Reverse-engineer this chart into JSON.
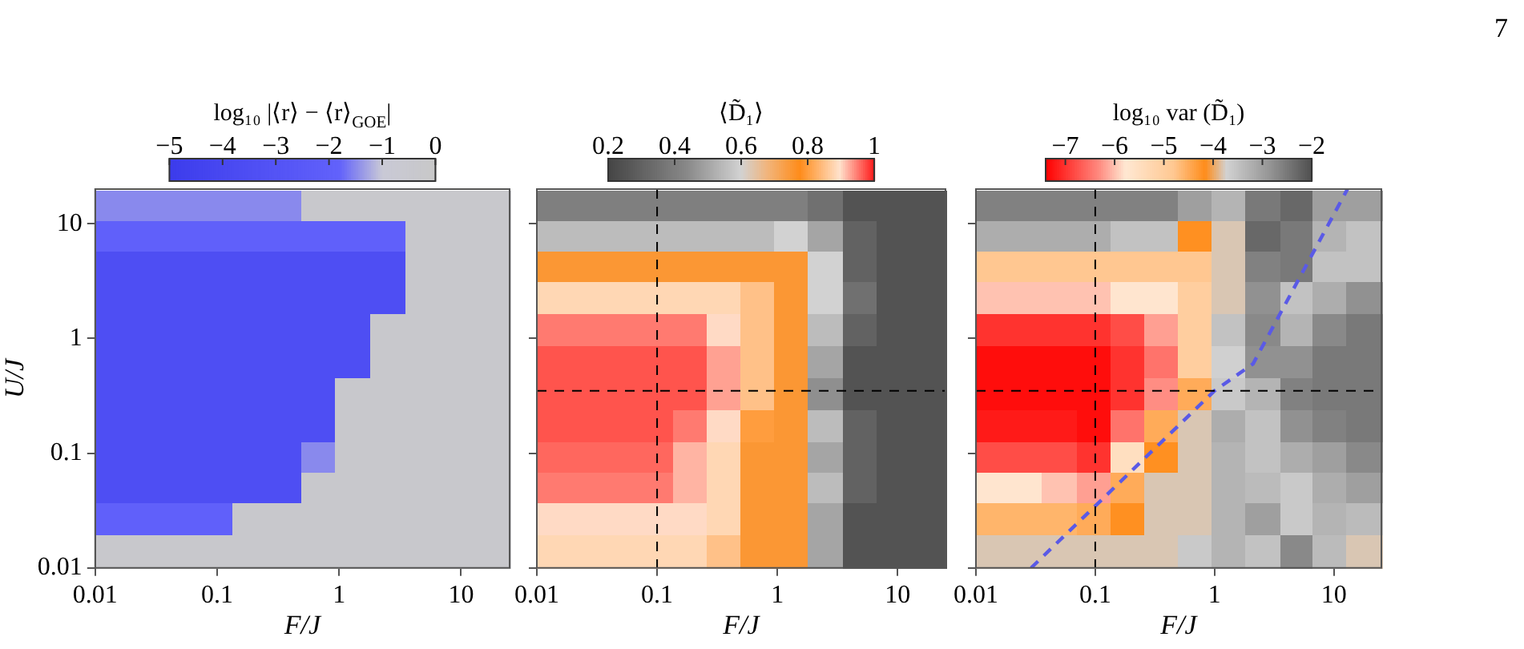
{
  "chart_data": [
    {
      "type": "heatmap",
      "clabel": "log₁₀ |⟨r⟩ − ⟨r⟩$_{GOE}$|",
      "xlabel": "F/J",
      "ylabel": "U/J",
      "x": [
        0.014,
        0.026,
        0.051,
        0.098,
        0.19,
        0.36,
        0.69,
        1.3,
        2.6,
        4.9,
        9.3,
        18
      ],
      "y": [
        14,
        7.7,
        4.1,
        2.2,
        1.15,
        0.6,
        0.32,
        0.17,
        0.09,
        0.05,
        0.026,
        0.014
      ],
      "cells": [
        [
          -1.5,
          -1.5,
          -1.5,
          -1.5,
          -1.5,
          -1.5,
          -0.3,
          -0.3,
          -0.3,
          -0.3,
          -0.3,
          -0.3
        ],
        [
          -2,
          -2,
          -2,
          -2,
          -2,
          -2,
          -2,
          -2,
          -2,
          -0.3,
          -0.3,
          -0.3
        ],
        [
          -3.5,
          -3.5,
          -3.5,
          -3.5,
          -3.5,
          -3.5,
          -3.5,
          -3.5,
          -3.5,
          -0.3,
          -0.3,
          -0.3
        ],
        [
          -3.5,
          -3.5,
          -3.5,
          -3.5,
          -3.5,
          -3.5,
          -3.5,
          -3.5,
          -3.5,
          -0.3,
          -0.3,
          -0.3
        ],
        [
          -3.5,
          -3.5,
          -3.5,
          -3.5,
          -3.5,
          -3.5,
          -3.5,
          -3.5,
          -0.3,
          -0.3,
          -0.3,
          -0.3
        ],
        [
          -3.5,
          -3.5,
          -3.5,
          -3.5,
          -3.5,
          -3.5,
          -3.5,
          -3.5,
          -0.3,
          -0.3,
          -0.3,
          -0.3
        ],
        [
          -3.5,
          -3.5,
          -3.5,
          -3.5,
          -3.5,
          -3.5,
          -3.5,
          -0.3,
          -0.3,
          -0.3,
          -0.3,
          -0.3
        ],
        [
          -3.5,
          -3.5,
          -3.5,
          -3.5,
          -3.5,
          -3.5,
          -3.5,
          -0.3,
          -0.3,
          -0.3,
          -0.3,
          -0.3
        ],
        [
          -3.5,
          -3.5,
          -3.5,
          -3.5,
          -3.5,
          -3.5,
          -1.5,
          -0.3,
          -0.3,
          -0.3,
          -0.3,
          -0.3
        ],
        [
          -3.5,
          -3.5,
          -3.5,
          -3.5,
          -3.5,
          -3.5,
          -0.3,
          -0.3,
          -0.3,
          -0.3,
          -0.3,
          -0.3
        ],
        [
          -2,
          -2,
          -2,
          -2,
          -0.3,
          -0.3,
          -0.3,
          -0.3,
          -0.3,
          -0.3,
          -0.3,
          -0.3
        ],
        [
          -0.3,
          -0.3,
          -0.3,
          -0.3,
          -0.3,
          -0.3,
          -0.3,
          -0.3,
          -0.3,
          -0.3,
          -0.3,
          -0.3
        ]
      ],
      "clim": [
        -5,
        0
      ],
      "cticks": [
        -5,
        -4,
        -3,
        -2,
        -1,
        0
      ],
      "xlim": [
        0.01,
        25
      ],
      "ylim": [
        0.01,
        20
      ],
      "xticks": [
        0.01,
        0.1,
        1,
        10
      ],
      "yticks": [
        0.01,
        0.1,
        1,
        10
      ],
      "log": "xy"
    },
    {
      "type": "heatmap",
      "clabel": "⟨D̃₁⟩",
      "xlabel": "F/J",
      "x": [
        0.014,
        0.026,
        0.051,
        0.098,
        0.19,
        0.36,
        0.69,
        1.3,
        2.6,
        4.9,
        9.3,
        18
      ],
      "y": [
        14,
        7.7,
        4.1,
        2.2,
        1.15,
        0.6,
        0.32,
        0.17,
        0.09,
        0.05,
        0.026,
        0.014
      ],
      "cells": [
        [
          0.4,
          0.4,
          0.4,
          0.4,
          0.4,
          0.4,
          0.4,
          0.4,
          0.35,
          0.25,
          0.25,
          0.25
        ],
        [
          0.55,
          0.55,
          0.55,
          0.55,
          0.55,
          0.55,
          0.55,
          0.6,
          0.5,
          0.3,
          0.25,
          0.25
        ],
        [
          0.75,
          0.75,
          0.75,
          0.75,
          0.75,
          0.75,
          0.75,
          0.75,
          0.6,
          0.3,
          0.25,
          0.25
        ],
        [
          0.88,
          0.88,
          0.88,
          0.88,
          0.88,
          0.88,
          0.85,
          0.75,
          0.6,
          0.35,
          0.25,
          0.25
        ],
        [
          0.95,
          0.95,
          0.95,
          0.95,
          0.95,
          0.9,
          0.85,
          0.75,
          0.55,
          0.3,
          0.25,
          0.25
        ],
        [
          0.97,
          0.97,
          0.97,
          0.97,
          0.97,
          0.93,
          0.85,
          0.75,
          0.5,
          0.25,
          0.25,
          0.25
        ],
        [
          0.97,
          0.97,
          0.97,
          0.97,
          0.97,
          0.93,
          0.85,
          0.75,
          0.45,
          0.25,
          0.25,
          0.25
        ],
        [
          0.97,
          0.97,
          0.97,
          0.97,
          0.95,
          0.9,
          0.8,
          0.75,
          0.55,
          0.3,
          0.25,
          0.25
        ],
        [
          0.96,
          0.96,
          0.96,
          0.96,
          0.92,
          0.88,
          0.75,
          0.75,
          0.5,
          0.3,
          0.25,
          0.25
        ],
        [
          0.95,
          0.95,
          0.95,
          0.95,
          0.92,
          0.88,
          0.75,
          0.75,
          0.55,
          0.3,
          0.25,
          0.25
        ],
        [
          0.9,
          0.9,
          0.9,
          0.9,
          0.9,
          0.88,
          0.75,
          0.75,
          0.5,
          0.25,
          0.25,
          0.25
        ],
        [
          0.88,
          0.88,
          0.88,
          0.88,
          0.88,
          0.85,
          0.75,
          0.75,
          0.5,
          0.25,
          0.25,
          0.25
        ]
      ],
      "clim": [
        0.2,
        1
      ],
      "cticks": [
        0.2,
        0.4,
        0.6,
        0.8,
        1
      ],
      "xlim": [
        0.01,
        25
      ],
      "ylim": [
        0.01,
        20
      ],
      "xticks": [
        0.01,
        0.1,
        1,
        10
      ],
      "yticks": [
        {
          "value": 0.01,
          "label": null
        },
        {
          "value": 0.1,
          "label": null
        },
        {
          "value": 1,
          "label": null
        },
        {
          "value": 10,
          "label": null
        }
      ],
      "log": "xy",
      "tick_labels": "x",
      "ref_lines": [
        {
          "axis": "x",
          "value": 0.1,
          "color": "#000000",
          "line_style": "dashed"
        },
        {
          "axis": "y",
          "value": 0.35,
          "color": "#000000",
          "line_style": "dashed"
        }
      ]
    },
    {
      "type": "heatmap",
      "clabel": "log₁₀ var (D̃₁)",
      "xlabel": "F/J",
      "x": [
        0.014,
        0.026,
        0.051,
        0.098,
        0.19,
        0.36,
        0.69,
        1.3,
        2.6,
        4.9,
        9.3,
        18
      ],
      "y": [
        14,
        7.7,
        4.1,
        2.2,
        1.15,
        0.6,
        0.32,
        0.17,
        0.09,
        0.05,
        0.026,
        0.014
      ],
      "cells": [
        [
          -2.6,
          -2.6,
          -2.6,
          -2.6,
          -2.6,
          -2.6,
          -3,
          -3.3,
          -2.5,
          -2.3,
          -3,
          -3
        ],
        [
          -3.2,
          -3.2,
          -3.2,
          -3.2,
          -3.5,
          -3.5,
          -4.2,
          -3.8,
          -2.3,
          -2.5,
          -3.3,
          -3.5
        ],
        [
          -4.8,
          -4.8,
          -4.8,
          -4.8,
          -4.8,
          -4.8,
          -4.8,
          -3.8,
          -2.6,
          -2.5,
          -3.5,
          -3.5
        ],
        [
          -6,
          -6,
          -6,
          -6,
          -5.8,
          -5.8,
          -5,
          -3.8,
          -2.8,
          -3.5,
          -3.2,
          -2.8
        ],
        [
          -7,
          -7,
          -7,
          -7,
          -6.8,
          -6.2,
          -5,
          -3.5,
          -2.7,
          -3.3,
          -2.7,
          -2.5
        ],
        [
          -7.3,
          -7.3,
          -7.3,
          -7.3,
          -7,
          -6.5,
          -5,
          -3.7,
          -2.8,
          -2.8,
          -2.5,
          -2.5
        ],
        [
          -7.3,
          -7.3,
          -7.3,
          -7.3,
          -7,
          -6.3,
          -4.5,
          -3.6,
          -3.3,
          -2.6,
          -2.5,
          -2.5
        ],
        [
          -7.2,
          -7.2,
          -7.2,
          -7.3,
          -6.5,
          -4.5,
          -3.8,
          -3.2,
          -3.5,
          -2.8,
          -2.6,
          -2.5
        ],
        [
          -6.8,
          -6.8,
          -6.8,
          -7,
          -5.5,
          -4.2,
          -3.8,
          -3.3,
          -3.5,
          -3.2,
          -3,
          -2.7
        ],
        [
          -5.8,
          -5.8,
          -6,
          -6.2,
          -4.5,
          -3.8,
          -3.8,
          -3.3,
          -3.4,
          -3.6,
          -3.2,
          -3
        ],
        [
          -4.6,
          -4.6,
          -4.6,
          -4.5,
          -4.2,
          -3.8,
          -3.8,
          -3.3,
          -3,
          -3.6,
          -3.3,
          -3.4
        ],
        [
          -3.8,
          -3.8,
          -3.8,
          -3.8,
          -3.8,
          -3.8,
          -3.6,
          -3.3,
          -3.5,
          -2.7,
          -3.4,
          -3.8
        ]
      ],
      "clim": [
        -7.4,
        -2
      ],
      "cticks": [
        -7,
        -6,
        -5,
        -4,
        -3,
        -2
      ],
      "xlim": [
        0.01,
        25
      ],
      "ylim": [
        0.01,
        20
      ],
      "xticks": [
        0.01,
        0.1,
        1,
        10
      ],
      "yticks": [
        {
          "value": 0.01,
          "label": null
        },
        {
          "value": 0.1,
          "label": null
        },
        {
          "value": 1,
          "label": null
        },
        {
          "value": 10,
          "label": null
        }
      ],
      "log": "xy",
      "tick_labels": "x",
      "ref_lines": [
        {
          "axis": "x",
          "value": 0.1,
          "color": "#000000",
          "line_style": "dashed"
        },
        {
          "axis": "y",
          "value": 0.35,
          "color": "#000000",
          "line_style": "dashed"
        }
      ],
      "series": [
        {
          "type": "line",
          "x": [
            0.029,
            1,
            2.1,
            13
          ],
          "values": [
            0.01,
            0.35,
            0.6,
            20
          ],
          "color": "#5a5ae6",
          "line_style": "dashed"
        }
      ],
      "annotations": [
        "7"
      ]
    }
  ]
}
